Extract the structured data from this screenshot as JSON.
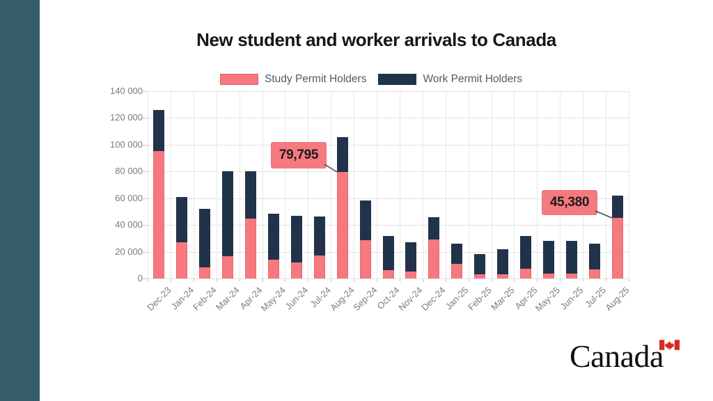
{
  "page": {
    "background_color": "#ffffff",
    "sidebar_color": "#355c69"
  },
  "title": "New student and worker arrivals to Canada",
  "legend": {
    "items": [
      {
        "label": "Study Permit Holders",
        "color": "#f5797f"
      },
      {
        "label": "Work Permit Holders",
        "color": "#20334a"
      }
    ]
  },
  "chart_data": {
    "type": "bar",
    "stacked": true,
    "title": "New student and worker arrivals to Canada",
    "xlabel": "",
    "ylabel": "",
    "ylim": [
      0,
      140000
    ],
    "ytick_interval": 20000,
    "ytick_labels": [
      "0",
      "20 000",
      "40 000",
      "60 000",
      "80 000",
      "100 000",
      "120 000",
      "140 000"
    ],
    "grid": true,
    "legend_position": "top",
    "categories": [
      "Dec-23",
      "Jan-24",
      "Feb-24",
      "Mar-24",
      "Apr-24",
      "May-24",
      "Jun-24",
      "Jul-24",
      "Aug-24",
      "Sep-24",
      "Oct-24",
      "Nov-24",
      "Dec-24",
      "Jan-25",
      "Feb-25",
      "Mar-25",
      "Apr-25",
      "May-25",
      "Jun-25",
      "Jul-25",
      "Aug-25"
    ],
    "series": [
      {
        "name": "Study Permit Holders",
        "color": "#f5797f",
        "values": [
          95000,
          27000,
          8500,
          16500,
          45000,
          14000,
          12000,
          17000,
          79795,
          28500,
          6500,
          5000,
          29000,
          11000,
          3000,
          3000,
          7500,
          3500,
          3500,
          7000,
          45380
        ]
      },
      {
        "name": "Work Permit Holders",
        "color": "#20334a",
        "values": [
          31000,
          34000,
          43500,
          63500,
          35000,
          34500,
          35000,
          29500,
          26000,
          30000,
          25000,
          22000,
          17000,
          15000,
          15000,
          19000,
          24500,
          24500,
          24500,
          19000,
          16500
        ]
      }
    ],
    "annotations": [
      {
        "text": "79,795",
        "category": "Aug-24",
        "series": "Study Permit Holders",
        "value": 79795
      },
      {
        "text": "45,380",
        "category": "Aug-25",
        "series": "Study Permit Holders",
        "value": 45380
      }
    ]
  },
  "footer": {
    "wordmark": "Canada",
    "flag_icon": "canada-flag-icon",
    "flag_color": "#d52b1e"
  }
}
